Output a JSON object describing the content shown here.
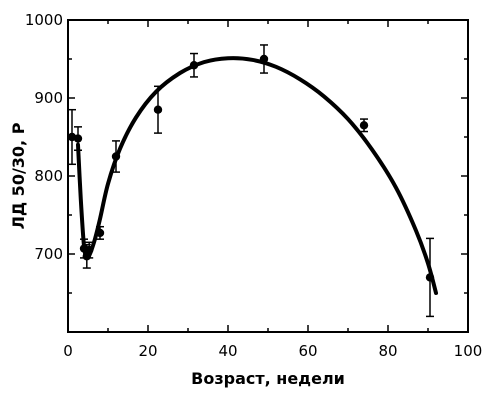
{
  "chart_data": {
    "type": "scatter",
    "xlabel": "Возраст, недели",
    "ylabel": "ЛД 50/30, Р",
    "xlim": [
      0,
      100
    ],
    "ylim": [
      600,
      1000
    ],
    "xticks": [
      0,
      20,
      40,
      60,
      80,
      100
    ],
    "yticks": [
      700,
      800,
      900,
      1000
    ],
    "grid": false,
    "points": [
      {
        "x": 1.0,
        "y": 850,
        "err_low": 35,
        "err_high": 35
      },
      {
        "x": 2.5,
        "y": 848,
        "err_low": 15,
        "err_high": 15
      },
      {
        "x": 4.0,
        "y": 707,
        "err_low": 12,
        "err_high": 12
      },
      {
        "x": 4.7,
        "y": 697,
        "err_low": 15,
        "err_high": 15
      },
      {
        "x": 5.3,
        "y": 705,
        "err_low": 10,
        "err_high": 10
      },
      {
        "x": 8.0,
        "y": 727,
        "err_low": 8,
        "err_high": 8
      },
      {
        "x": 12.0,
        "y": 825,
        "err_low": 20,
        "err_high": 20
      },
      {
        "x": 22.5,
        "y": 885,
        "err_low": 30,
        "err_high": 30
      },
      {
        "x": 31.5,
        "y": 942,
        "err_low": 15,
        "err_high": 15
      },
      {
        "x": 49.0,
        "y": 950,
        "err_low": 18,
        "err_high": 18
      },
      {
        "x": 74.0,
        "y": 865,
        "err_low": 8,
        "err_high": 8
      },
      {
        "x": 90.5,
        "y": 670,
        "err_low": 50,
        "err_high": 50
      }
    ],
    "curve": [
      [
        2.5,
        840
      ],
      [
        3.2,
        770
      ],
      [
        4.0,
        710
      ],
      [
        4.6,
        697
      ],
      [
        5.2,
        697
      ],
      [
        6.5,
        715
      ],
      [
        8.0,
        745
      ],
      [
        10.0,
        790
      ],
      [
        13.0,
        835
      ],
      [
        17.0,
        875
      ],
      [
        22.0,
        908
      ],
      [
        28.0,
        932
      ],
      [
        34.0,
        946
      ],
      [
        40.0,
        951
      ],
      [
        46.0,
        949
      ],
      [
        52.0,
        940
      ],
      [
        58.0,
        924
      ],
      [
        64.0,
        902
      ],
      [
        70.0,
        873
      ],
      [
        76.0,
        834
      ],
      [
        82.0,
        785
      ],
      [
        87.0,
        730
      ],
      [
        90.0,
        688
      ],
      [
        92.0,
        650
      ]
    ]
  }
}
